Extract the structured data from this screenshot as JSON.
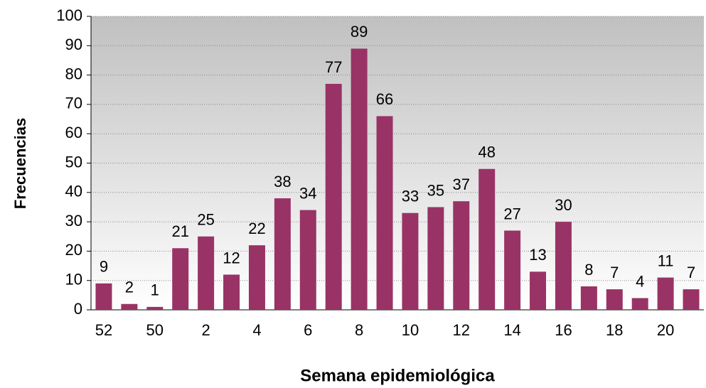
{
  "chart_data": {
    "type": "bar",
    "x_label": "Semana epidemiológica",
    "y_label": "Frecuencias",
    "categories": [
      "52",
      null,
      "50",
      null,
      "2",
      null,
      "4",
      null,
      "6",
      null,
      "8",
      null,
      "10",
      null,
      "12",
      null,
      "14",
      null,
      "16",
      null,
      "18",
      null,
      "20",
      null
    ],
    "values": [
      9,
      2,
      1,
      21,
      25,
      12,
      22,
      38,
      34,
      77,
      89,
      66,
      33,
      35,
      37,
      48,
      27,
      13,
      30,
      8,
      7,
      4,
      11,
      7
    ],
    "color": "#993366",
    "ylim": [
      0,
      100
    ],
    "yticks": [
      0,
      10,
      20,
      30,
      40,
      50,
      60,
      70,
      80,
      90,
      100
    ],
    "grid": true
  }
}
